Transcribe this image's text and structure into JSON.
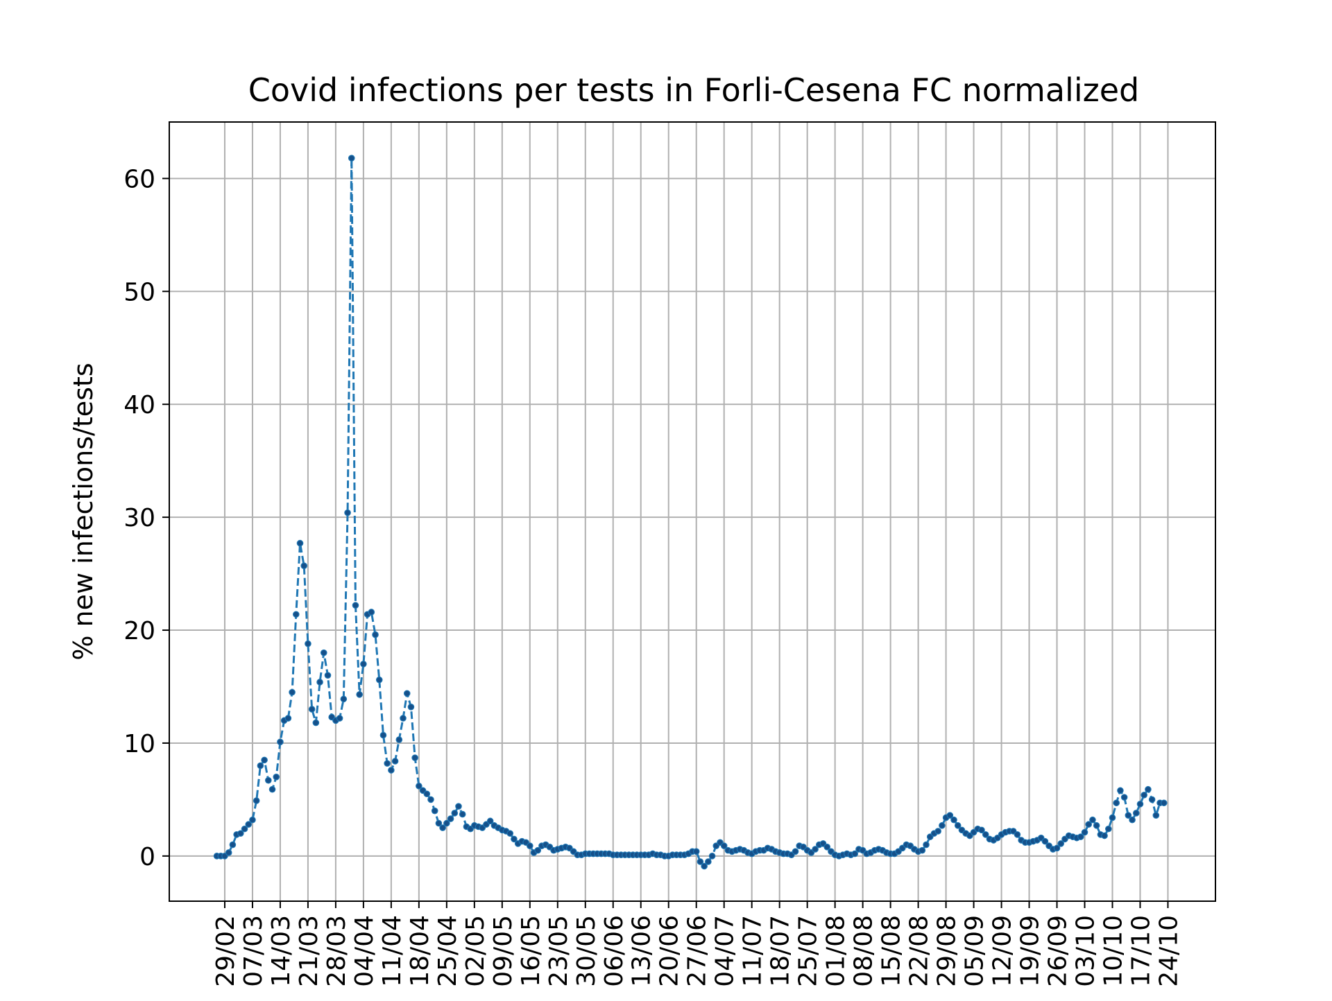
{
  "chart_data": {
    "type": "line",
    "title": "Covid infections per tests in Forli-Cesena FC normalized",
    "xlabel": "",
    "ylabel": "% new infections/tests",
    "ylim": [
      -4,
      65
    ],
    "yticks": [
      0,
      10,
      20,
      30,
      40,
      50,
      60
    ],
    "x_range": [
      "2020-02-15",
      "2020-11-05"
    ],
    "x_tick_labels": [
      "29/02",
      "07/03",
      "14/03",
      "21/03",
      "28/03",
      "04/04",
      "11/04",
      "18/04",
      "25/04",
      "02/05",
      "09/05",
      "16/05",
      "23/05",
      "30/05",
      "06/06",
      "13/06",
      "20/06",
      "27/06",
      "04/07",
      "11/07",
      "18/07",
      "25/07",
      "01/08",
      "08/08",
      "15/08",
      "22/08",
      "29/08",
      "05/09",
      "12/09",
      "19/09",
      "26/09",
      "03/10",
      "10/10",
      "17/10",
      "24/10"
    ],
    "x_tick_dates": [
      "2020-02-29",
      "2020-03-07",
      "2020-03-14",
      "2020-03-21",
      "2020-03-28",
      "2020-04-04",
      "2020-04-11",
      "2020-04-18",
      "2020-04-25",
      "2020-05-02",
      "2020-05-09",
      "2020-05-16",
      "2020-05-23",
      "2020-05-30",
      "2020-06-06",
      "2020-06-13",
      "2020-06-20",
      "2020-06-27",
      "2020-07-04",
      "2020-07-11",
      "2020-07-18",
      "2020-07-25",
      "2020-08-01",
      "2020-08-08",
      "2020-08-15",
      "2020-08-22",
      "2020-08-29",
      "2020-09-05",
      "2020-09-12",
      "2020-09-19",
      "2020-09-26",
      "2020-10-03",
      "2020-10-10",
      "2020-10-17",
      "2020-10-24"
    ],
    "grid": true,
    "line_style": "dashed",
    "marker": "dot",
    "series": [
      {
        "color": "#1f77b4",
        "marker_color": "#15508a",
        "x_start": "2020-02-27",
        "x_step_days": 1,
        "values": [
          0.0,
          0.0,
          0.0,
          0.3,
          1.0,
          1.9,
          2.0,
          2.4,
          2.8,
          3.2,
          4.9,
          8.0,
          8.5,
          6.7,
          5.9,
          7.0,
          10.1,
          12.0,
          12.2,
          14.5,
          21.4,
          27.7,
          25.7,
          18.8,
          13.0,
          11.8,
          15.4,
          18.0,
          16.0,
          12.3,
          12.0,
          12.2,
          13.9,
          30.4,
          61.8,
          22.2,
          14.3,
          17.0,
          21.4,
          21.6,
          19.6,
          15.6,
          10.7,
          8.2,
          7.6,
          8.4,
          10.3,
          12.2,
          14.4,
          13.2,
          8.7,
          6.2,
          5.8,
          5.5,
          5.0,
          4.0,
          2.9,
          2.5,
          2.9,
          3.3,
          3.8,
          4.4,
          3.7,
          2.6,
          2.4,
          2.7,
          2.6,
          2.5,
          2.8,
          3.1,
          2.7,
          2.5,
          2.3,
          2.2,
          2.0,
          1.5,
          1.1,
          1.3,
          1.2,
          0.9,
          0.3,
          0.5,
          0.9,
          1.0,
          0.8,
          0.5,
          0.6,
          0.7,
          0.8,
          0.7,
          0.4,
          0.1,
          0.1,
          0.2,
          0.2,
          0.2,
          0.2,
          0.2,
          0.2,
          0.2,
          0.1,
          0.1,
          0.1,
          0.1,
          0.1,
          0.1,
          0.1,
          0.1,
          0.1,
          0.1,
          0.2,
          0.1,
          0.1,
          0.0,
          0.0,
          0.1,
          0.1,
          0.1,
          0.1,
          0.2,
          0.4,
          0.4,
          -0.5,
          -0.9,
          -0.5,
          0.0,
          0.9,
          1.2,
          0.9,
          0.5,
          0.4,
          0.5,
          0.6,
          0.5,
          0.3,
          0.2,
          0.4,
          0.5,
          0.5,
          0.7,
          0.6,
          0.4,
          0.3,
          0.2,
          0.2,
          0.1,
          0.4,
          0.9,
          0.8,
          0.5,
          0.3,
          0.6,
          1.0,
          1.1,
          0.8,
          0.4,
          0.1,
          0.0,
          0.1,
          0.2,
          0.1,
          0.2,
          0.6,
          0.5,
          0.2,
          0.3,
          0.5,
          0.6,
          0.5,
          0.3,
          0.2,
          0.2,
          0.4,
          0.7,
          1.0,
          0.9,
          0.6,
          0.4,
          0.5,
          1.0,
          1.7,
          2.0,
          2.2,
          2.7,
          3.4,
          3.6,
          3.2,
          2.7,
          2.3,
          2.0,
          1.8,
          2.1,
          2.4,
          2.3,
          1.9,
          1.5,
          1.4,
          1.6,
          1.9,
          2.1,
          2.2,
          2.2,
          1.9,
          1.4,
          1.2,
          1.2,
          1.3,
          1.4,
          1.6,
          1.3,
          0.9,
          0.6,
          0.7,
          1.1,
          1.5,
          1.8,
          1.7,
          1.6,
          1.7,
          2.1,
          2.8,
          3.2,
          2.7,
          1.9,
          1.8,
          2.4,
          3.4,
          4.7,
          5.8,
          5.2,
          3.6,
          3.2,
          3.8,
          4.6,
          5.4,
          5.9,
          5.0,
          3.6,
          4.7,
          4.7
        ]
      }
    ]
  }
}
